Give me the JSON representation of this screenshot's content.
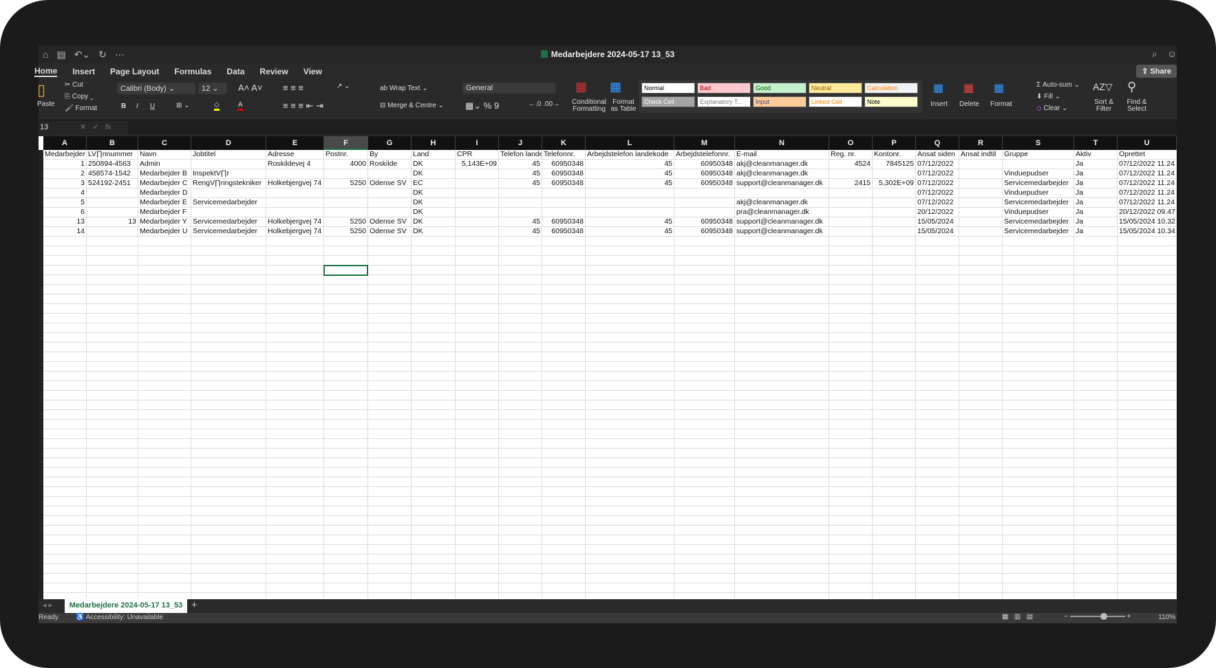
{
  "window": {
    "title": "Medarbejdere 2024-05-17 13_53"
  },
  "quick_access": [
    "home-icon",
    "save-icon",
    "undo-icon",
    "redo-icon",
    "more-icon"
  ],
  "tabs": [
    {
      "label": "Home",
      "active": true
    },
    {
      "label": "Insert"
    },
    {
      "label": "Page Layout"
    },
    {
      "label": "Formulas"
    },
    {
      "label": "Data"
    },
    {
      "label": "Review"
    },
    {
      "label": "View"
    }
  ],
  "share_label": "Share",
  "ribbon": {
    "paste": "Paste",
    "cut": "Cut",
    "copy": "Copy",
    "format_painter": "Format",
    "font": "Calibri (Body)",
    "size": "12",
    "bold": "B",
    "italic": "I",
    "underline": "U",
    "wrap": "Wrap Text",
    "merge": "Merge & Centre",
    "number_format": "General",
    "percent": "%",
    "comma": "9",
    "cond": "Conditional Formatting",
    "fmt_table": "Format as Table",
    "styles": [
      {
        "label": "Normal",
        "bg": "#ffffff",
        "fg": "#000000"
      },
      {
        "label": "Bad",
        "bg": "#ffc7ce",
        "fg": "#9c0006"
      },
      {
        "label": "Good",
        "bg": "#c6efce",
        "fg": "#006100"
      },
      {
        "label": "Neutral",
        "bg": "#ffeb9c",
        "fg": "#9c5700"
      },
      {
        "label": "Calculation",
        "bg": "#f2f2f2",
        "fg": "#fa7d00"
      },
      {
        "label": "Check Cell",
        "bg": "#a5a5a5",
        "fg": "#ffffff"
      },
      {
        "label": "Explanatory T...",
        "bg": "#ffffff",
        "fg": "#7f7f7f"
      },
      {
        "label": "Input",
        "bg": "#ffcc99",
        "fg": "#3f3f76"
      },
      {
        "label": "Linked Cell",
        "bg": "#ffffff",
        "fg": "#fa7d00"
      },
      {
        "label": "Note",
        "bg": "#ffffcc",
        "fg": "#000000"
      }
    ],
    "insert": "Insert",
    "delete": "Delete",
    "format": "Format",
    "autosum": "Auto-sum",
    "fill": "Fill",
    "clear": "Clear",
    "sort": "Sort & Filter",
    "find": "Find & Select"
  },
  "formula_bar": {
    "name_box": "13",
    "fx": "fx",
    "value": ""
  },
  "sheet": {
    "columns": [
      "A",
      "B",
      "C",
      "D",
      "E",
      "F",
      "G",
      "H",
      "I",
      "J",
      "K",
      "L",
      "M",
      "N",
      "O",
      "P",
      "Q",
      "R",
      "S",
      "T",
      "U"
    ],
    "selected_column": "F",
    "rows": [
      [
        "Medarbejder",
        "LV∏nnummer",
        "Navn",
        "Jobtitel",
        "Adresse",
        "Postnr.",
        "By",
        "Land",
        "CPR",
        "Telefon landekode",
        "Telefonnr.",
        "Arbejdstelefon landekode",
        "Arbejdstelefonnr.",
        "E-mail",
        "Reg. nr.",
        "Kontonr.",
        "Ansat siden",
        "Ansat indtil",
        "Gruppe",
        "Aktiv",
        "Oprettet"
      ],
      [
        "1",
        "250894-4563",
        "Admin",
        "",
        "Roskildevej 4",
        "4000",
        "Roskilde",
        "DK",
        "5,143E+09",
        "45",
        "60950348",
        "45",
        "60950348",
        "akj@cleanmanager.dk",
        "4524",
        "7845125",
        "07/12/2022",
        "",
        "",
        "Ja",
        "07/12/2022 11.24"
      ],
      [
        "2",
        "458574-1542",
        "Medarbejder B",
        "InspektV∏r",
        "",
        "",
        "",
        "DK",
        "",
        "45",
        "60950348",
        "45",
        "60950348",
        "akj@cleanmanager.dk",
        "",
        "",
        "07/12/2022",
        "",
        "Vinduepudser",
        "Ja",
        "07/12/2022 11.24"
      ],
      [
        "3",
        "524192-2451",
        "Medarbejder C",
        "RengV∏ringstekniker",
        "Holkebjergvej 74",
        "5250",
        "Odense SV",
        "EC",
        "",
        "45",
        "60950348",
        "45",
        "60950348",
        "support@cleanmanager.dk",
        "2415",
        "5,302E+09",
        "07/12/2022",
        "",
        "Servicemedarbejder",
        "Ja",
        "07/12/2022 11.24"
      ],
      [
        "4",
        "",
        "Medarbejder D",
        "",
        "",
        "",
        "",
        "DK",
        "",
        "",
        "",
        "",
        "",
        "",
        "",
        "",
        "07/12/2022",
        "",
        "Vinduepudser",
        "Ja",
        "07/12/2022 11.24"
      ],
      [
        "5",
        "",
        "Medarbejder E",
        "Servicemedarbejder",
        "",
        "",
        "",
        "DK",
        "",
        "",
        "",
        "",
        "",
        "akj@cleanmanager.dk",
        "",
        "",
        "07/12/2022",
        "",
        "Servicemedarbejder",
        "Ja",
        "07/12/2022 11.24"
      ],
      [
        "6",
        "",
        "Medarbejder F",
        "",
        "",
        "",
        "",
        "DK",
        "",
        "",
        "",
        "",
        "",
        "pra@cleanmanager.dk",
        "",
        "",
        "20/12/2022",
        "",
        "Vinduepudser",
        "Ja",
        "20/12/2022 09.47"
      ],
      [
        "13",
        "13",
        "Medarbejder Y",
        "Servicemedarbejder",
        "Holkebjergvej 74",
        "5250",
        "Odense SV",
        "DK",
        "",
        "45",
        "60950348",
        "45",
        "60950348",
        "support@cleanmanager.dk",
        "",
        "",
        "15/05/2024",
        "",
        "Servicemedarbejder",
        "Ja",
        "15/05/2024 10.32"
      ],
      [
        "14",
        "",
        "Medarbejder U",
        "Servicemedarbejder",
        "Holkebjergvej 74",
        "5250",
        "Odense SV",
        "DK",
        "",
        "45",
        "60950348",
        "45",
        "60950348",
        "support@cleanmanager.dk",
        "",
        "",
        "15/05/2024",
        "",
        "Servicemedarbejder",
        "Ja",
        "15/05/2024 10.34"
      ]
    ],
    "selected_cell": "F13",
    "tab": "Medarbejdere 2024-05-17 13_53"
  },
  "status": {
    "ready": "Ready",
    "accessibility": "Accessibility: Unavailable",
    "zoom": "110%"
  }
}
